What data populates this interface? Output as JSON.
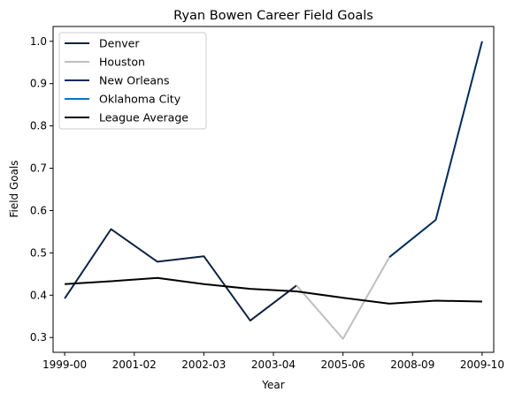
{
  "chart_data": {
    "type": "line",
    "title": "Ryan Bowen Career Field Goals",
    "xlabel": "Year",
    "ylabel": "Field Goals",
    "x_ticks": [
      "1999-00",
      "2001-02",
      "2002-03",
      "2003-04",
      "2005-06",
      "2008-09",
      "2009-10"
    ],
    "y_ticks": [
      "0.3",
      "0.4",
      "0.5",
      "0.6",
      "0.7",
      "0.8",
      "0.9",
      "1.0"
    ],
    "xlim": [
      -0.25,
      9.25
    ],
    "ylim": [
      0.265,
      1.035
    ],
    "grid": false,
    "legend_position": "top-left",
    "series": [
      {
        "name": "Denver",
        "color": "#0e2240",
        "points": [
          [
            0,
            0.392
          ],
          [
            1,
            0.556
          ],
          [
            2,
            0.479
          ],
          [
            3,
            0.492
          ],
          [
            4,
            0.34
          ],
          [
            5,
            0.423
          ]
        ]
      },
      {
        "name": "Houston",
        "color": "#bfbfbf",
        "points": [
          [
            5,
            0.423
          ],
          [
            6,
            0.297
          ],
          [
            7,
            0.49
          ]
        ]
      },
      {
        "name": "New Orleans",
        "color": "#002b5c",
        "points": [
          [
            7,
            0.49
          ],
          [
            8,
            0.578
          ],
          [
            9,
            1.0
          ]
        ]
      },
      {
        "name": "Oklahoma City",
        "color": "#007ac1",
        "points": []
      },
      {
        "name": "League Average",
        "color": "#000000",
        "points": [
          [
            0,
            0.426
          ],
          [
            1,
            0.433
          ],
          [
            2,
            0.441
          ],
          [
            3,
            0.426
          ],
          [
            4,
            0.415
          ],
          [
            5,
            0.409
          ],
          [
            6,
            0.394
          ],
          [
            7,
            0.38
          ],
          [
            8,
            0.387
          ],
          [
            9,
            0.385
          ]
        ]
      }
    ]
  }
}
